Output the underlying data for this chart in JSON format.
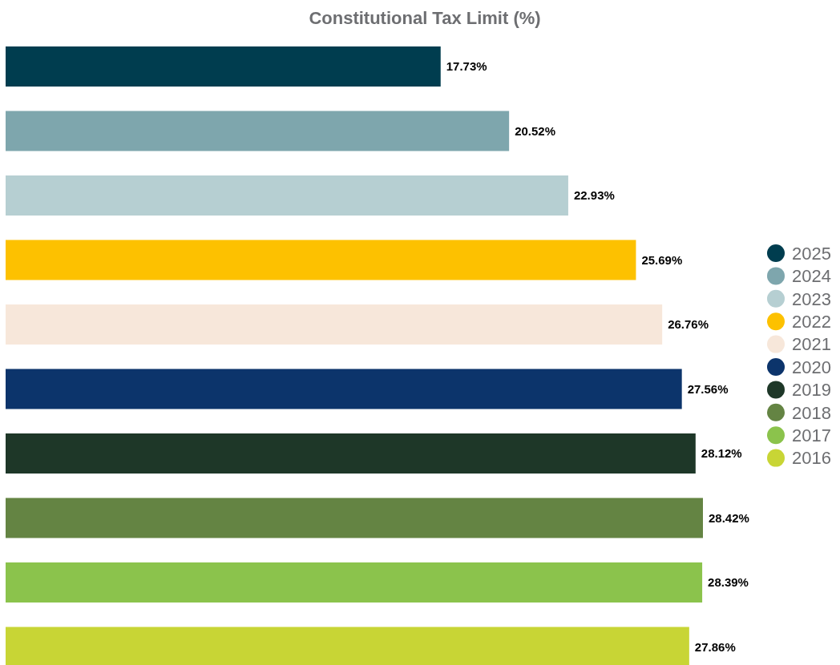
{
  "chart_data": {
    "type": "bar",
    "orientation": "horizontal",
    "stacked": true,
    "title": "Constitutional Tax Limit (%)",
    "categories": [
      null,
      null,
      null,
      null,
      null,
      null,
      null,
      null,
      null,
      null
    ],
    "legend": "right",
    "series": [
      {
        "name": "2025",
        "color": "#003d4f",
        "values": [
          17.73,
          null,
          null,
          null,
          null,
          null,
          null,
          null,
          null,
          null
        ],
        "value_labels": [
          "17.73%",
          null,
          null,
          null,
          null,
          null,
          null,
          null,
          null,
          null
        ]
      },
      {
        "name": "2024",
        "color": "#7ea6ad",
        "values": [
          null,
          20.52,
          null,
          null,
          null,
          null,
          null,
          null,
          null,
          null
        ],
        "value_labels": [
          null,
          "20.52%",
          null,
          null,
          null,
          null,
          null,
          null,
          null,
          null
        ]
      },
      {
        "name": "2023",
        "color": "#b6cfd2",
        "values": [
          null,
          null,
          22.93,
          null,
          null,
          null,
          null,
          null,
          null,
          null
        ],
        "value_labels": [
          null,
          null,
          "22.93%",
          null,
          null,
          null,
          null,
          null,
          null,
          null
        ]
      },
      {
        "name": "2022",
        "color": "#fdc100",
        "values": [
          null,
          null,
          null,
          25.69,
          null,
          null,
          null,
          null,
          null,
          null
        ],
        "value_labels": [
          null,
          null,
          null,
          "25.69%",
          null,
          null,
          null,
          null,
          null,
          null
        ]
      },
      {
        "name": "2021",
        "color": "#f7e7da",
        "values": [
          null,
          null,
          null,
          null,
          26.76,
          null,
          null,
          null,
          null,
          null
        ],
        "value_labels": [
          null,
          null,
          null,
          null,
          "26.76%",
          null,
          null,
          null,
          null,
          null
        ]
      },
      {
        "name": "2020",
        "color": "#0c346b",
        "values": [
          null,
          null,
          null,
          null,
          null,
          27.56,
          null,
          null,
          null,
          null
        ],
        "value_labels": [
          null,
          null,
          null,
          null,
          null,
          "27.56%",
          null,
          null,
          null,
          null
        ]
      },
      {
        "name": "2019",
        "color": "#1e3728",
        "values": [
          null,
          null,
          null,
          null,
          null,
          null,
          28.12,
          null,
          null,
          null
        ],
        "value_labels": [
          null,
          null,
          null,
          null,
          null,
          null,
          "28.12%",
          null,
          null,
          null
        ]
      },
      {
        "name": "2018",
        "color": "#648443",
        "values": [
          null,
          null,
          null,
          null,
          null,
          null,
          null,
          28.42,
          null,
          null
        ],
        "value_labels": [
          null,
          null,
          null,
          null,
          null,
          null,
          null,
          "28.42%",
          null,
          null
        ]
      },
      {
        "name": "2017",
        "color": "#8bc34c",
        "values": [
          null,
          null,
          null,
          null,
          null,
          null,
          null,
          null,
          28.39,
          null
        ],
        "value_labels": [
          null,
          null,
          null,
          null,
          null,
          null,
          null,
          null,
          "28.39%",
          null
        ]
      },
      {
        "name": "2016",
        "color": "#c8d535",
        "values": [
          null,
          null,
          null,
          null,
          null,
          null,
          null,
          null,
          null,
          27.86
        ],
        "value_labels": [
          null,
          null,
          null,
          null,
          null,
          null,
          null,
          null,
          null,
          "27.86%"
        ]
      }
    ]
  }
}
